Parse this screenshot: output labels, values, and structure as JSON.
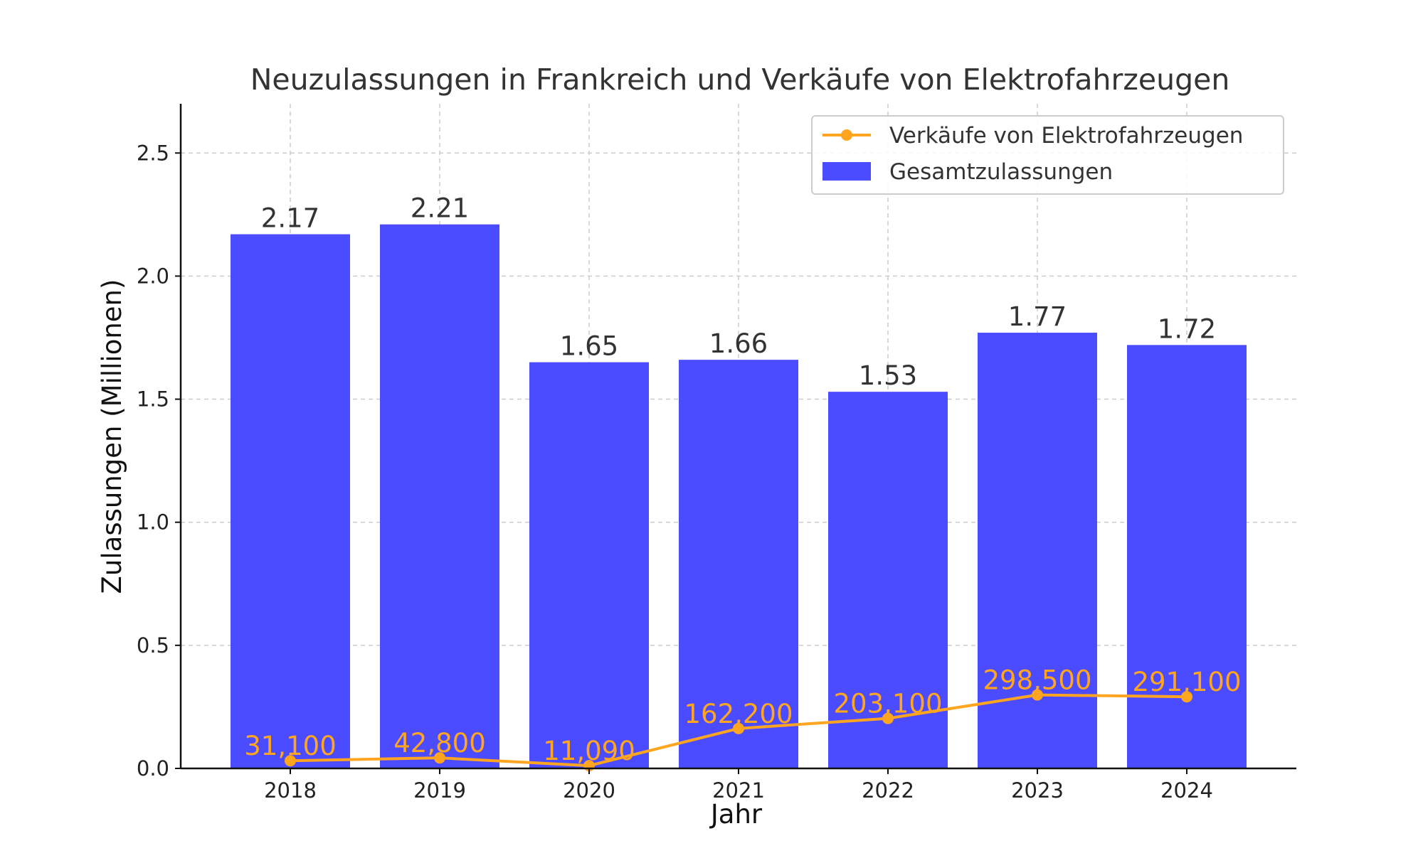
{
  "chart_data": {
    "type": "bar",
    "title": "Neuzulassungen in Frankreich und Verkäufe von Elektrofahrzeugen",
    "xlabel": "Jahr",
    "ylabel": "Zulassungen (Millionen)",
    "categories": [
      "2018",
      "2019",
      "2020",
      "2021",
      "2022",
      "2023",
      "2024"
    ],
    "ylim": [
      0,
      2.7
    ],
    "yticks": [
      0.0,
      0.5,
      1.0,
      1.5,
      2.0,
      2.5
    ],
    "ytick_labels": [
      "0.0",
      "0.5",
      "1.0",
      "1.5",
      "2.0",
      "2.5"
    ],
    "grid": true,
    "legend_position": "top-right",
    "series": [
      {
        "name": "Gesamtzulassungen",
        "type": "bar",
        "color": "#4b4bff",
        "values": [
          2.17,
          2.21,
          1.65,
          1.66,
          1.53,
          1.77,
          1.72
        ],
        "labels": [
          "2.17",
          "2.21",
          "1.65",
          "1.66",
          "1.53",
          "1.77",
          "1.72"
        ]
      },
      {
        "name": "Verkäufe von Elektrofahrzeugen",
        "type": "line",
        "color": "#ffa51f",
        "values": [
          0.0311,
          0.0428,
          0.01109,
          0.1622,
          0.2031,
          0.2985,
          0.2911
        ],
        "labels": [
          "31,100",
          "42,800",
          "11,090",
          "162,200",
          "203,100",
          "298,500",
          "291,100"
        ]
      }
    ]
  }
}
